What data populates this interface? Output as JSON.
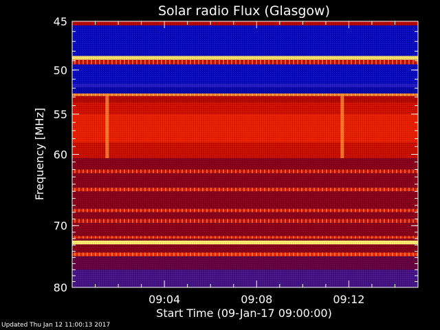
{
  "footer_text": "Updated Thu Jan 12 11:00:13 2017",
  "chart_data": {
    "type": "heatmap",
    "title": "Solar radio Flux (Glasgow)",
    "xlabel": "Start Time (09-Jan-17 09:00:00)",
    "ylabel": "Frequency [MHz]",
    "x_unit": "minutes after 09:00",
    "xlim": [
      0,
      15
    ],
    "x_ticks": [
      {
        "value": 4,
        "label": "09:04"
      },
      {
        "value": 8,
        "label": "09:08"
      },
      {
        "value": 12,
        "label": "09:12"
      }
    ],
    "y_scale": "log",
    "ylim": [
      45,
      80
    ],
    "y_ticks": [
      {
        "value": 45,
        "label": "45"
      },
      {
        "value": 50,
        "label": "50"
      },
      {
        "value": 55,
        "label": "55"
      },
      {
        "value": 60,
        "label": "60"
      },
      {
        "value": 70,
        "label": "70"
      },
      {
        "value": 80,
        "label": "80"
      }
    ],
    "colormap": [
      "#000080",
      "#1010e0",
      "#3020b0",
      "#600040",
      "#a00000",
      "#d01000",
      "#ff3000",
      "#ffb040",
      "#ffff80"
    ],
    "bands": [
      {
        "f0": 45,
        "f1": 45.4,
        "level": 0.55
      },
      {
        "f0": 45.4,
        "f1": 48.5,
        "level": 0.08
      },
      {
        "f0": 48.5,
        "f1": 48.9,
        "level": 0.95
      },
      {
        "f0": 48.9,
        "f1": 49.4,
        "level": 0.6
      },
      {
        "f0": 49.4,
        "f1": 51.5,
        "level": 0.08
      },
      {
        "f0": 51.5,
        "f1": 51.9,
        "level": 0.2
      },
      {
        "f0": 51.9,
        "f1": 52.6,
        "level": 0.05
      },
      {
        "f0": 52.6,
        "f1": 52.9,
        "level": 0.82
      },
      {
        "f0": 52.9,
        "f1": 53.6,
        "level": 0.55
      },
      {
        "f0": 53.6,
        "f1": 55.0,
        "level": 0.62
      },
      {
        "f0": 55.0,
        "f1": 58.5,
        "level": 0.68
      },
      {
        "f0": 58.5,
        "f1": 60.5,
        "level": 0.6
      },
      {
        "f0": 60.5,
        "f1": 62.0,
        "level": 0.45
      },
      {
        "f0": 62.0,
        "f1": 62.5,
        "level": 0.62
      },
      {
        "f0": 62.5,
        "f1": 64.5,
        "level": 0.45
      },
      {
        "f0": 64.5,
        "f1": 65.0,
        "level": 0.66
      },
      {
        "f0": 65.0,
        "f1": 67.5,
        "level": 0.45
      },
      {
        "f0": 67.5,
        "f1": 68.0,
        "level": 0.65
      },
      {
        "f0": 68.0,
        "f1": 69.0,
        "level": 0.45
      },
      {
        "f0": 69.0,
        "f1": 69.6,
        "level": 0.6
      },
      {
        "f0": 69.6,
        "f1": 71.6,
        "level": 0.45
      },
      {
        "f0": 71.6,
        "f1": 72.0,
        "level": 0.68
      },
      {
        "f0": 72.0,
        "f1": 72.3,
        "level": 0.45
      },
      {
        "f0": 72.3,
        "f1": 72.9,
        "level": 0.97
      },
      {
        "f0": 72.9,
        "f1": 74.2,
        "level": 0.45
      },
      {
        "f0": 74.2,
        "f1": 74.8,
        "level": 0.72
      },
      {
        "f0": 74.8,
        "f1": 77.0,
        "level": 0.38
      },
      {
        "f0": 77.0,
        "f1": 80.0,
        "level": 0.3
      }
    ],
    "events": [
      {
        "t": 1.5,
        "f0": 52.6,
        "f1": 60.5,
        "level": 0.85
      },
      {
        "t": 11.7,
        "f0": 52.6,
        "f1": 60.5,
        "level": 0.85
      }
    ]
  }
}
